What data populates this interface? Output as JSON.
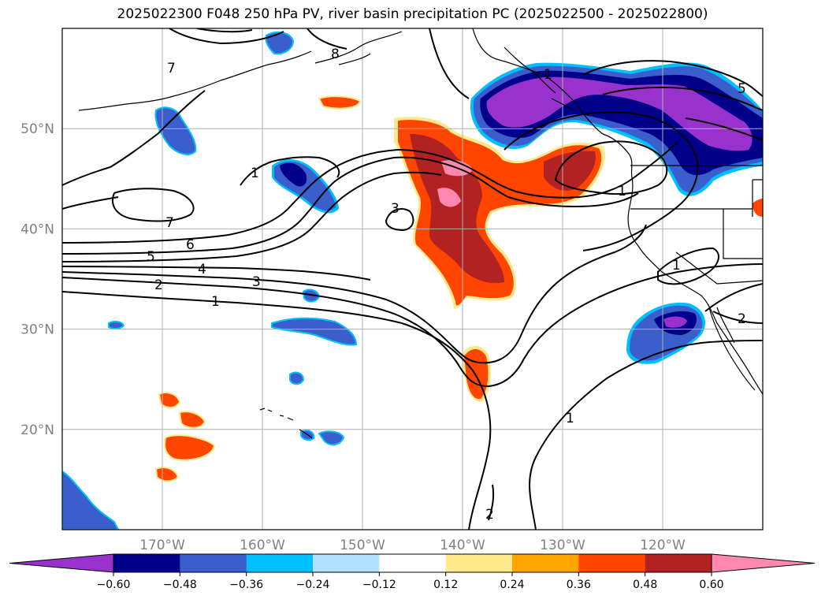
{
  "title": "2025022300 F048 250 hPa PV, river basin precipitation PC (2025022500 - 2025022800)",
  "map": {
    "lat_labels": [
      "50°N",
      "40°N",
      "30°N",
      "20°N"
    ],
    "lon_labels": [
      "170°W",
      "160°W",
      "150°W",
      "140°W",
      "130°W",
      "120°W"
    ],
    "lat_range": [
      10,
      60
    ],
    "lon_range": [
      -180,
      -110
    ],
    "grid": true
  },
  "colorbar": {
    "ticks": [
      "−0.60",
      "−0.48",
      "−0.36",
      "−0.24",
      "−0.12",
      "0.12",
      "0.24",
      "0.36",
      "0.48",
      "0.60"
    ],
    "colors": [
      "#9932cc",
      "#00008b",
      "#3a5fcd",
      "#00bfff",
      "#b0e2ff",
      "#ffffff",
      "#ffe98c",
      "#ffa500",
      "#ff4500",
      "#b22222",
      "#ff88b0"
    ],
    "extend": "both"
  },
  "pv_contour_labels": [
    "1",
    "2",
    "3",
    "4",
    "5",
    "6",
    "7",
    "1",
    "7",
    "3",
    "1",
    "1",
    "5",
    "1",
    "2",
    "1",
    "2",
    "8"
  ],
  "colors": {
    "neg_purple": "#9932cc",
    "neg_navy": "#00008b",
    "neg_blue": "#3a5fcd",
    "neg_cyan": "#00bfff",
    "pos_yellow": "#ffe98c",
    "pos_orange": "#ffa500",
    "pos_redorange": "#ff4500",
    "pos_firebrick": "#b22222",
    "pos_pink": "#ff88b0",
    "contour": "#000000",
    "grid": "#b0b0b0"
  }
}
